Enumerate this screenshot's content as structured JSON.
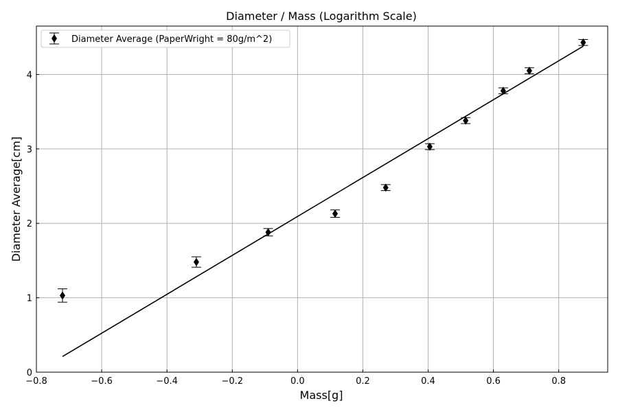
{
  "chart_data": {
    "type": "scatter",
    "title": "Diameter / Mass (Logarithm Scale)",
    "xlabel": "Mass[g]",
    "ylabel": "Diameter Average[cm]",
    "xlim": [
      -0.8,
      0.95
    ],
    "ylim": [
      0,
      4.65
    ],
    "xticks": [
      -0.8,
      -0.6,
      -0.4,
      -0.2,
      0.0,
      0.2,
      0.4,
      0.6,
      0.8
    ],
    "xtick_labels": [
      "−0.8",
      "−0.6",
      "−0.4",
      "−0.2",
      "0.0",
      "0.2",
      "0.4",
      "0.6",
      "0.8"
    ],
    "yticks": [
      0,
      1,
      2,
      3,
      4
    ],
    "ytick_labels": [
      "0",
      "1",
      "2",
      "3",
      "4"
    ],
    "grid": true,
    "legend_position": "top-left",
    "series": [
      {
        "name": "Diameter Average (PaperWright = 80g/m^2)",
        "marker": "diamond",
        "color": "#000000",
        "points": [
          {
            "x": -0.72,
            "y": 1.03,
            "err": 0.09
          },
          {
            "x": -0.31,
            "y": 1.48,
            "err": 0.07
          },
          {
            "x": -0.09,
            "y": 1.88,
            "err": 0.05
          },
          {
            "x": 0.115,
            "y": 2.13,
            "err": 0.05
          },
          {
            "x": 0.27,
            "y": 2.48,
            "err": 0.04
          },
          {
            "x": 0.405,
            "y": 3.03,
            "err": 0.04
          },
          {
            "x": 0.515,
            "y": 3.38,
            "err": 0.04
          },
          {
            "x": 0.63,
            "y": 3.78,
            "err": 0.04
          },
          {
            "x": 0.71,
            "y": 4.05,
            "err": 0.04
          },
          {
            "x": 0.875,
            "y": 4.43,
            "err": 0.04
          }
        ]
      }
    ],
    "fit_line": {
      "color": "#000000",
      "points": [
        {
          "x": -0.72,
          "y": 0.21
        },
        {
          "x": 0.875,
          "y": 4.38
        }
      ]
    }
  }
}
